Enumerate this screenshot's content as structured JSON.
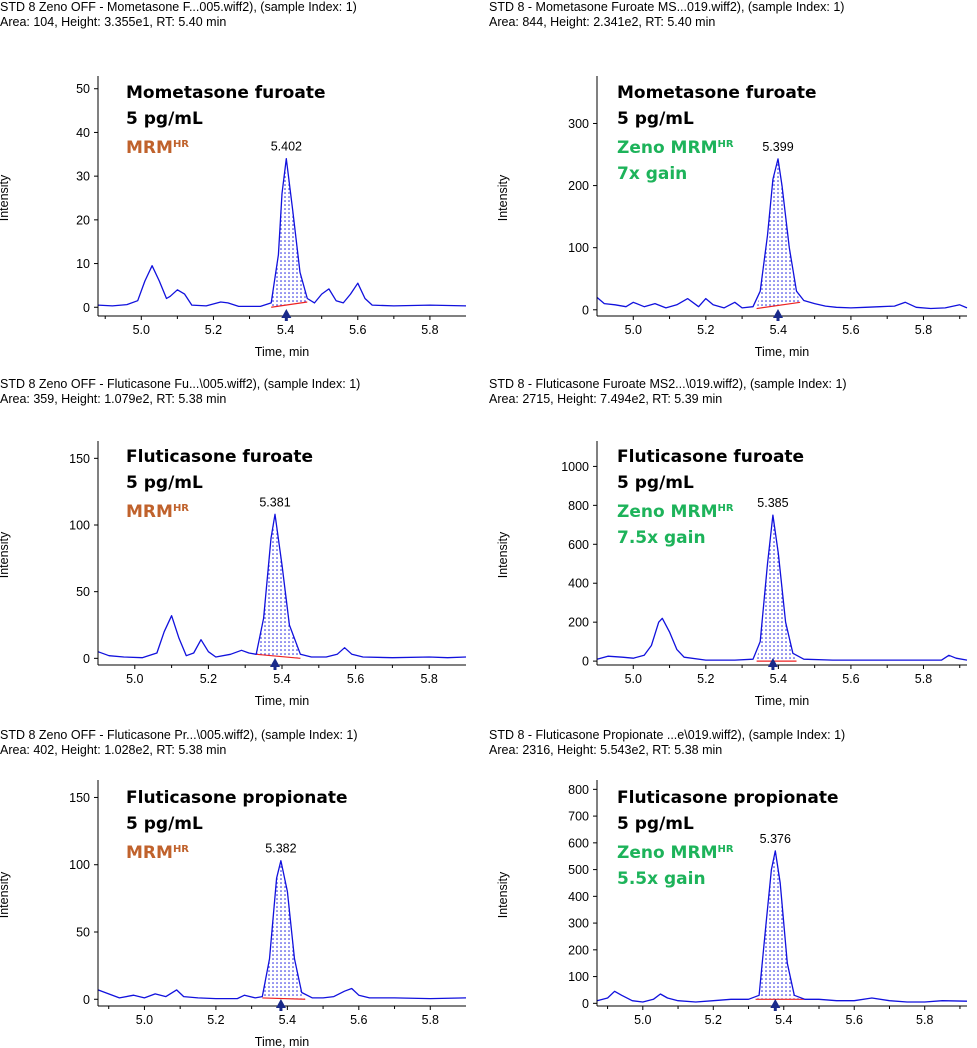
{
  "colors": {
    "trace": "#1111dd",
    "baseline": "#ee2222",
    "fill_dots": "#1111dd",
    "marker": "#1a2a8a",
    "mrm_orange": "#c0622c",
    "zeno_green": "#1db35a"
  },
  "chart_data": [
    {
      "type": "line",
      "header1": "STD 8 Zeno OFF - Mometasone F...005.wiff2), (sample Index: 1)",
      "header2": "Area: 104, Height: 3.355e1, RT: 5.40 min",
      "xlabel": "Time, min",
      "ylabel": "Intensity",
      "xlim": [
        4.88,
        5.9
      ],
      "ylim": [
        -2,
        52
      ],
      "xticks": [
        5.0,
        5.2,
        5.4,
        5.6,
        5.8
      ],
      "xtick_labels": [
        "5.0",
        "5.2",
        "5.4",
        "5.6",
        "5.8"
      ],
      "yticks": [
        0,
        10,
        20,
        30,
        40,
        50
      ],
      "ytick_labels": [
        "0",
        "10",
        "20",
        "30",
        "40",
        "50"
      ],
      "compound": "Mometasone furoate",
      "conc": "5 pg/mL",
      "mode": "MRM",
      "mode_sup": "HR",
      "mode_color": "orange",
      "gain": "",
      "peak_label": "5.402",
      "apex_x": 5.402,
      "apex_y": 34,
      "fill_range": [
        5.36,
        5.46
      ],
      "baseline_y": [
        0,
        1.2
      ],
      "points": [
        [
          4.88,
          0.5
        ],
        [
          4.92,
          0.3
        ],
        [
          4.96,
          0.6
        ],
        [
          4.99,
          1.5
        ],
        [
          5.01,
          6
        ],
        [
          5.03,
          9.5
        ],
        [
          5.05,
          6
        ],
        [
          5.07,
          2
        ],
        [
          5.08,
          2.5
        ],
        [
          5.1,
          4
        ],
        [
          5.12,
          3
        ],
        [
          5.14,
          0.5
        ],
        [
          5.18,
          0.3
        ],
        [
          5.22,
          1.2
        ],
        [
          5.24,
          1
        ],
        [
          5.27,
          0.2
        ],
        [
          5.33,
          0.2
        ],
        [
          5.36,
          1
        ],
        [
          5.38,
          12
        ],
        [
          5.39,
          26
        ],
        [
          5.402,
          34
        ],
        [
          5.42,
          22
        ],
        [
          5.44,
          8
        ],
        [
          5.46,
          2
        ],
        [
          5.48,
          1
        ],
        [
          5.5,
          3
        ],
        [
          5.52,
          4.2
        ],
        [
          5.54,
          1.5
        ],
        [
          5.56,
          1
        ],
        [
          5.58,
          3
        ],
        [
          5.6,
          5.5
        ],
        [
          5.62,
          2
        ],
        [
          5.64,
          0.5
        ],
        [
          5.7,
          0.3
        ],
        [
          5.8,
          0.5
        ],
        [
          5.9,
          0.3
        ]
      ]
    },
    {
      "type": "line",
      "header1": "STD 8 - Mometasone Furoate MS...019.wiff2), (sample Index: 1)",
      "header2": "Area: 844, Height: 2.341e2, RT: 5.40 min",
      "xlabel": "Time, min",
      "ylabel": "Intensity",
      "xlim": [
        4.9,
        5.92
      ],
      "ylim": [
        -10,
        370
      ],
      "xticks": [
        5.0,
        5.2,
        5.4,
        5.6,
        5.8
      ],
      "xtick_labels": [
        "5.0",
        "5.2",
        "5.4",
        "5.6",
        "5.8"
      ],
      "yticks": [
        0,
        100,
        200,
        300
      ],
      "ytick_labels": [
        "0",
        "100",
        "200",
        "300"
      ],
      "compound": "Mometasone furoate",
      "conc": "5 pg/mL",
      "mode": "Zeno MRM",
      "mode_sup": "HR",
      "mode_color": "green",
      "gain": "7x gain",
      "peak_label": "5.399",
      "apex_x": 5.399,
      "apex_y": 243,
      "fill_range": [
        5.34,
        5.46
      ],
      "baseline_y": [
        2,
        12
      ],
      "points": [
        [
          4.9,
          20
        ],
        [
          4.92,
          10
        ],
        [
          4.95,
          8
        ],
        [
          4.98,
          5
        ],
        [
          5.0,
          12
        ],
        [
          5.03,
          5
        ],
        [
          5.06,
          10
        ],
        [
          5.09,
          3
        ],
        [
          5.12,
          8
        ],
        [
          5.15,
          18
        ],
        [
          5.18,
          5
        ],
        [
          5.2,
          18
        ],
        [
          5.22,
          8
        ],
        [
          5.25,
          3
        ],
        [
          5.28,
          12
        ],
        [
          5.3,
          3
        ],
        [
          5.33,
          5
        ],
        [
          5.35,
          30
        ],
        [
          5.37,
          120
        ],
        [
          5.385,
          210
        ],
        [
          5.399,
          243
        ],
        [
          5.41,
          200
        ],
        [
          5.43,
          100
        ],
        [
          5.45,
          30
        ],
        [
          5.47,
          15
        ],
        [
          5.5,
          10
        ],
        [
          5.53,
          6
        ],
        [
          5.56,
          4
        ],
        [
          5.6,
          3
        ],
        [
          5.64,
          4
        ],
        [
          5.68,
          5
        ],
        [
          5.72,
          6
        ],
        [
          5.75,
          12
        ],
        [
          5.78,
          4
        ],
        [
          5.82,
          2
        ],
        [
          5.86,
          3
        ],
        [
          5.9,
          8
        ],
        [
          5.92,
          3
        ]
      ]
    },
    {
      "type": "line",
      "header1": "STD 8 Zeno OFF - Fluticasone Fu...\\005.wiff2), (sample Index: 1)",
      "header2": "Area: 359, Height: 1.079e2, RT: 5.38 min",
      "xlabel": "Time, min",
      "ylabel": "Intensity",
      "xlim": [
        4.9,
        5.9
      ],
      "ylim": [
        -5,
        160
      ],
      "xticks": [
        5.0,
        5.2,
        5.4,
        5.6,
        5.8
      ],
      "xtick_labels": [
        "5.0",
        "5.2",
        "5.4",
        "5.6",
        "5.8"
      ],
      "yticks": [
        0,
        50,
        100,
        150
      ],
      "ytick_labels": [
        "0",
        "50",
        "100",
        "150"
      ],
      "compound": "Fluticasone furoate",
      "conc": "5 pg/mL",
      "mode": "MRM",
      "mode_sup": "HR",
      "mode_color": "orange",
      "gain": "",
      "peak_label": "5.381",
      "apex_x": 5.381,
      "apex_y": 108,
      "fill_range": [
        5.33,
        5.45
      ],
      "baseline_y": [
        3,
        0
      ],
      "points": [
        [
          4.9,
          5
        ],
        [
          4.93,
          2
        ],
        [
          4.97,
          1
        ],
        [
          5.02,
          0.5
        ],
        [
          5.06,
          4
        ],
        [
          5.08,
          20
        ],
        [
          5.1,
          32
        ],
        [
          5.12,
          15
        ],
        [
          5.14,
          2
        ],
        [
          5.16,
          4
        ],
        [
          5.18,
          14
        ],
        [
          5.2,
          5
        ],
        [
          5.22,
          1
        ],
        [
          5.26,
          3
        ],
        [
          5.29,
          6
        ],
        [
          5.31,
          4
        ],
        [
          5.33,
          3
        ],
        [
          5.35,
          30
        ],
        [
          5.37,
          90
        ],
        [
          5.381,
          108
        ],
        [
          5.4,
          70
        ],
        [
          5.42,
          25
        ],
        [
          5.45,
          3
        ],
        [
          5.48,
          1
        ],
        [
          5.52,
          1
        ],
        [
          5.55,
          3
        ],
        [
          5.57,
          8
        ],
        [
          5.59,
          3
        ],
        [
          5.62,
          1
        ],
        [
          5.7,
          0.5
        ],
        [
          5.8,
          1
        ],
        [
          5.85,
          0.5
        ],
        [
          5.9,
          1
        ]
      ]
    },
    {
      "type": "line",
      "header1": "STD 8 - Fluticasone Furoate MS2...\\019.wiff2), (sample Index: 1)",
      "header2": "Area: 2715, Height: 7.494e2, RT: 5.39 min",
      "xlabel": "Time, min",
      "ylabel": "Intensity",
      "xlim": [
        4.9,
        5.92
      ],
      "ylim": [
        -20,
        1110
      ],
      "xticks": [
        5.0,
        5.2,
        5.4,
        5.6,
        5.8
      ],
      "xtick_labels": [
        "5.0",
        "5.2",
        "5.4",
        "5.6",
        "5.8"
      ],
      "yticks": [
        0,
        200,
        400,
        600,
        800,
        1000
      ],
      "ytick_labels": [
        "0",
        "200",
        "400",
        "600",
        "800",
        "1000"
      ],
      "compound": "Fluticasone furoate",
      "conc": "5 pg/mL",
      "mode": "Zeno MRM",
      "mode_sup": "HR",
      "mode_color": "green",
      "gain": "7.5x gain",
      "peak_label": "5.385",
      "apex_x": 5.385,
      "apex_y": 750,
      "fill_range": [
        5.34,
        5.45
      ],
      "baseline_y": [
        0,
        0
      ],
      "points": [
        [
          4.9,
          10
        ],
        [
          4.93,
          25
        ],
        [
          4.97,
          20
        ],
        [
          5.0,
          15
        ],
        [
          5.03,
          30
        ],
        [
          5.05,
          80
        ],
        [
          5.07,
          200
        ],
        [
          5.08,
          220
        ],
        [
          5.1,
          150
        ],
        [
          5.12,
          60
        ],
        [
          5.14,
          20
        ],
        [
          5.2,
          5
        ],
        [
          5.28,
          5
        ],
        [
          5.33,
          10
        ],
        [
          5.35,
          100
        ],
        [
          5.37,
          500
        ],
        [
          5.385,
          750
        ],
        [
          5.4,
          550
        ],
        [
          5.42,
          200
        ],
        [
          5.44,
          40
        ],
        [
          5.47,
          10
        ],
        [
          5.55,
          5
        ],
        [
          5.7,
          5
        ],
        [
          5.85,
          5
        ],
        [
          5.87,
          30
        ],
        [
          5.89,
          15
        ],
        [
          5.92,
          5
        ]
      ]
    },
    {
      "type": "line",
      "header1": "STD 8 Zeno OFF - Fluticasone Pr...\\005.wiff2), (sample Index: 1)",
      "header2": "Area: 402, Height: 1.028e2, RT: 5.38 min",
      "xlabel": "Time, min",
      "ylabel": "Intensity",
      "xlim": [
        4.87,
        5.9
      ],
      "ylim": [
        -5,
        160
      ],
      "xticks": [
        5.0,
        5.2,
        5.4,
        5.6,
        5.8
      ],
      "xtick_labels": [
        "5.0",
        "5.2",
        "5.4",
        "5.6",
        "5.8"
      ],
      "yticks": [
        0,
        50,
        100,
        150
      ],
      "ytick_labels": [
        "0",
        "50",
        "100",
        "150"
      ],
      "compound": "Fluticasone propionate",
      "conc": "5 pg/mL",
      "mode": "MRM",
      "mode_sup": "HR",
      "mode_color": "orange",
      "gain": "",
      "peak_label": "5.382",
      "apex_x": 5.382,
      "apex_y": 103,
      "fill_range": [
        5.33,
        5.45
      ],
      "baseline_y": [
        1,
        0
      ],
      "points": [
        [
          4.87,
          7
        ],
        [
          4.9,
          4
        ],
        [
          4.93,
          1
        ],
        [
          4.97,
          3
        ],
        [
          5.0,
          1
        ],
        [
          5.03,
          4
        ],
        [
          5.06,
          2
        ],
        [
          5.09,
          7
        ],
        [
          5.11,
          2
        ],
        [
          5.15,
          1
        ],
        [
          5.2,
          0.5
        ],
        [
          5.26,
          0.5
        ],
        [
          5.28,
          3
        ],
        [
          5.31,
          1
        ],
        [
          5.33,
          2
        ],
        [
          5.35,
          30
        ],
        [
          5.37,
          90
        ],
        [
          5.382,
          103
        ],
        [
          5.4,
          80
        ],
        [
          5.42,
          30
        ],
        [
          5.44,
          5
        ],
        [
          5.47,
          1
        ],
        [
          5.5,
          1
        ],
        [
          5.53,
          2
        ],
        [
          5.56,
          6
        ],
        [
          5.58,
          8
        ],
        [
          5.6,
          3
        ],
        [
          5.63,
          1
        ],
        [
          5.7,
          1
        ],
        [
          5.8,
          0.5
        ],
        [
          5.9,
          1
        ]
      ]
    },
    {
      "type": "line",
      "header1": "STD 8 - Fluticasone Propionate ...e\\019.wiff2), (sample Index: 1)",
      "header2": "Area: 2316, Height: 5.543e2, RT: 5.38 min",
      "xlabel": "",
      "ylabel": "Intensity",
      "xlim": [
        4.87,
        5.92
      ],
      "ylim": [
        -10,
        820
      ],
      "xticks": [
        5.0,
        5.2,
        5.4,
        5.6,
        5.8
      ],
      "xtick_labels": [
        "5.0",
        "5.2",
        "5.4",
        "5.6",
        "5.8"
      ],
      "yticks": [
        0,
        100,
        200,
        300,
        400,
        500,
        600,
        700,
        800
      ],
      "ytick_labels": [
        "0",
        "100",
        "200",
        "300",
        "400",
        "500",
        "600",
        "700",
        "800"
      ],
      "compound": "Fluticasone propionate",
      "conc": "5 pg/mL",
      "mode": "Zeno MRM",
      "mode_sup": "HR",
      "mode_color": "green",
      "gain": "5.5x gain",
      "peak_label": "5.376",
      "apex_x": 5.376,
      "apex_y": 570,
      "fill_range": [
        5.32,
        5.46
      ],
      "baseline_y": [
        15,
        15
      ],
      "points": [
        [
          4.87,
          10
        ],
        [
          4.9,
          20
        ],
        [
          4.92,
          45
        ],
        [
          4.94,
          30
        ],
        [
          4.97,
          10
        ],
        [
          5.0,
          5
        ],
        [
          5.03,
          15
        ],
        [
          5.05,
          35
        ],
        [
          5.07,
          20
        ],
        [
          5.1,
          10
        ],
        [
          5.15,
          5
        ],
        [
          5.2,
          10
        ],
        [
          5.25,
          15
        ],
        [
          5.3,
          15
        ],
        [
          5.33,
          30
        ],
        [
          5.35,
          300
        ],
        [
          5.365,
          500
        ],
        [
          5.376,
          570
        ],
        [
          5.39,
          450
        ],
        [
          5.41,
          150
        ],
        [
          5.43,
          30
        ],
        [
          5.46,
          15
        ],
        [
          5.5,
          15
        ],
        [
          5.55,
          10
        ],
        [
          5.6,
          10
        ],
        [
          5.65,
          20
        ],
        [
          5.7,
          10
        ],
        [
          5.75,
          5
        ],
        [
          5.8,
          5
        ],
        [
          5.85,
          10
        ],
        [
          5.92,
          8
        ]
      ]
    }
  ]
}
